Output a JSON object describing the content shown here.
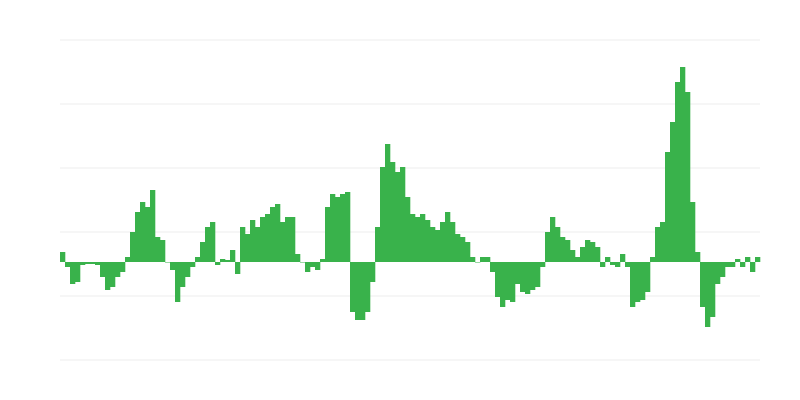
{
  "chart_data": {
    "type": "bar",
    "title": "",
    "xlabel": "",
    "ylabel": "",
    "ylim": [
      -98,
      222
    ],
    "grid": true,
    "gridlines": [
      222,
      158,
      94,
      30,
      -34,
      -98
    ],
    "bar_color": "#39b24b",
    "grid_color": "#eeeeee",
    "values": [
      10,
      -5,
      -22,
      -20,
      -3,
      -2,
      -2,
      -3,
      -15,
      -28,
      -25,
      -15,
      -10,
      5,
      30,
      50,
      60,
      55,
      72,
      25,
      22,
      0,
      -8,
      -40,
      -25,
      -15,
      -5,
      5,
      20,
      35,
      40,
      -3,
      3,
      2,
      12,
      -12,
      35,
      28,
      42,
      35,
      45,
      48,
      55,
      58,
      40,
      45,
      45,
      8,
      0,
      -10,
      -5,
      -8,
      3,
      55,
      68,
      65,
      68,
      70,
      -50,
      -58,
      -58,
      -50,
      -20,
      35,
      95,
      118,
      100,
      90,
      95,
      65,
      48,
      45,
      48,
      42,
      35,
      32,
      40,
      50,
      40,
      28,
      25,
      20,
      5,
      0,
      5,
      5,
      -10,
      -35,
      -45,
      -38,
      -40,
      -22,
      -30,
      -32,
      -28,
      -25,
      -5,
      30,
      45,
      35,
      25,
      22,
      12,
      5,
      15,
      22,
      20,
      15,
      -5,
      5,
      -3,
      -5,
      8,
      -5,
      -45,
      -40,
      -38,
      -30,
      5,
      35,
      40,
      110,
      140,
      180,
      195,
      170,
      60,
      10,
      -45,
      -65,
      -55,
      -22,
      -15,
      -5,
      -5,
      3,
      -5,
      5,
      -10,
      5
    ]
  }
}
